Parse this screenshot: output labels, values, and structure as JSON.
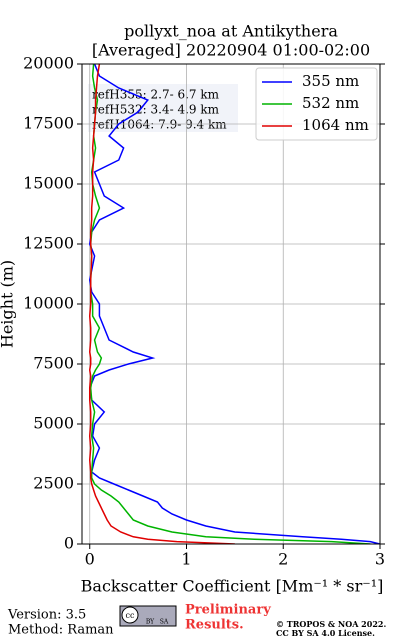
{
  "chart_data": {
    "type": "line",
    "title": [
      "pollyxt_noa at Antikythera",
      "[Averaged] 20220904 01:00-02:00"
    ],
    "x_label": "Backscatter Coefficient [Mm⁻¹ * sr⁻¹]",
    "y_label": "Height (m)",
    "heights": [
      0,
      100,
      200,
      300,
      500,
      750,
      1000,
      1250,
      1500,
      1750,
      2000,
      2250,
      2500,
      2750,
      3000,
      3500,
      4000,
      4500,
      5000,
      5500,
      6000,
      6500,
      7000,
      7250,
      7500,
      7750,
      8000,
      8500,
      9000,
      9500,
      10000,
      10500,
      11000,
      12000,
      12500,
      13000,
      13500,
      14000,
      14500,
      15000,
      15500,
      16000,
      16500,
      17000,
      17500,
      18000,
      18500,
      19000,
      19500,
      20000
    ],
    "series": [
      {
        "name": "355 nm",
        "color": "#0000ff",
        "values": [
          3.0,
          2.9,
          2.6,
          2.2,
          1.5,
          1.2,
          1.0,
          0.85,
          0.75,
          0.7,
          0.55,
          0.4,
          0.25,
          0.1,
          0.02,
          0.05,
          0.1,
          0.03,
          0.05,
          0.15,
          0.02,
          0.0,
          0.05,
          0.2,
          0.4,
          0.65,
          0.45,
          0.2,
          0.15,
          0.1,
          0.1,
          0.02,
          0.0,
          0.05,
          0.0,
          0.02,
          0.1,
          0.35,
          0.15,
          0.1,
          0.05,
          0.3,
          0.35,
          0.2,
          0.3,
          0.5,
          0.6,
          0.3,
          0.1,
          0.05
        ]
      },
      {
        "name": "532 nm",
        "color": "#00b400",
        "values": [
          2.9,
          2.5,
          1.7,
          1.2,
          0.85,
          0.6,
          0.45,
          0.4,
          0.35,
          0.3,
          0.22,
          0.12,
          0.05,
          0.02,
          0.02,
          0.03,
          0.04,
          0.02,
          0.03,
          0.05,
          0.02,
          0.01,
          0.03,
          0.06,
          0.1,
          0.12,
          0.08,
          0.05,
          0.1,
          0.03,
          0.03,
          0.01,
          0.01,
          0.02,
          0.01,
          0.02,
          0.05,
          0.1,
          0.06,
          0.03,
          0.02,
          0.04,
          0.06,
          0.04,
          0.05,
          0.06,
          0.08,
          0.05,
          0.03,
          0.04
        ]
      },
      {
        "name": "1064 nm",
        "color": "#e00000",
        "values": [
          1.5,
          0.9,
          0.6,
          0.45,
          0.32,
          0.22,
          0.18,
          0.15,
          0.12,
          0.09,
          0.06,
          0.04,
          0.02,
          0.01,
          0.01,
          0.0,
          0.01,
          0.0,
          0.01,
          0.01,
          0.0,
          0.0,
          0.01,
          0.0,
          0.01,
          0.01,
          0.0,
          0.01,
          0.01,
          0.0,
          0.01,
          0.01,
          0.01,
          0.02,
          0.01,
          0.01,
          0.02,
          0.02,
          0.03,
          0.03,
          0.03,
          0.04,
          0.03,
          0.04,
          0.05,
          0.06,
          0.06,
          0.07,
          0.08,
          0.1
        ]
      }
    ],
    "xlim": [
      -0.08,
      3
    ],
    "xticks": [
      0,
      1,
      2,
      3
    ],
    "ylim": [
      0,
      20000
    ],
    "yticks": [
      0,
      2500,
      5000,
      7500,
      10000,
      12500,
      15000,
      17500,
      20000
    ],
    "grid": true,
    "legend": "upper right",
    "annotations": [
      "refH355:  2.7- 6.7 km",
      "refH532:  3.4- 4.9 km",
      "refH1064:  7.9- 9.4 km"
    ]
  },
  "footer": {
    "version": "Version: 3.5",
    "method": "Method: Raman",
    "badge": [
      "cc",
      "BY",
      "SA"
    ],
    "notice": [
      "Preliminary",
      "Results."
    ],
    "copyright": [
      "© TROPOS & NOA 2022.",
      "CC BY SA 4.0 License."
    ]
  }
}
